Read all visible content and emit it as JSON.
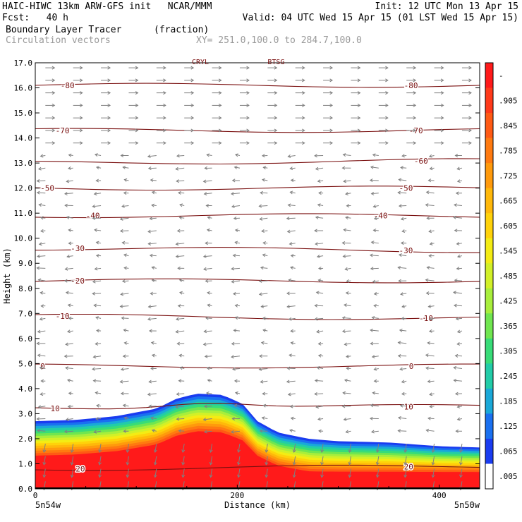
{
  "header": {
    "line1_left": "HAIC-HIWC 13km ARW-GFS init   NCAR/MMM",
    "line1_right": "Init: 12 UTC Mon 13 Apr 15",
    "line2_left": "Fcst:   40 h",
    "line2_right": "Valid: 04 UTC Wed 15 Apr 15 (01 LST Wed 15 Apr 15)",
    "field_name": "Boundary Layer Tracer",
    "field_units": "(fraction)",
    "vector_name": "Circulation vectors",
    "xsec_coords": "XY= 251.0,100.0 to 284.7,100.0"
  },
  "chart_data": {
    "type": "heatmap",
    "title": "Boundary Layer Tracer",
    "units": "fraction",
    "ylabel": "Height (km)",
    "xlabel": "Distance (km)",
    "ylim": [
      0,
      17
    ],
    "xlim": [
      0,
      440
    ],
    "y_ticks": [
      "0.0",
      "1.0",
      "2.0",
      "3.0",
      "4.0",
      "5.0",
      "6.0",
      "7.0",
      "8.0",
      "9.0",
      "10.0",
      "11.0",
      "12.0",
      "13.0",
      "14.0",
      "15.0",
      "16.0",
      "17.0"
    ],
    "x_ticks": [
      {
        "value": 0,
        "label": "0"
      },
      {
        "value": 200,
        "label": "200"
      },
      {
        "value": 400,
        "label": "400"
      }
    ],
    "endpoint_labels": [
      "5n54w",
      "5n50w"
    ],
    "top_markers": [
      "CRYL",
      "BTSG"
    ],
    "colorbar": {
      "labels": [
        "-",
        ".905",
        ".845",
        ".785",
        ".725",
        ".665",
        ".605",
        ".545",
        ".485",
        ".425",
        ".365",
        ".305",
        ".245",
        ".185",
        ".125",
        ".065",
        ".005"
      ],
      "colors": [
        "#ff1a1a",
        "#ff3a1a",
        "#ff5a14",
        "#ff7a10",
        "#ff9a0c",
        "#ffb80a",
        "#ffd20a",
        "#f4ec14",
        "#d2f028",
        "#a8ee3c",
        "#70e650",
        "#38dc78",
        "#22cca8",
        "#1aa8d8",
        "#1a70f0",
        "#1a3cf0",
        "#ffffff"
      ]
    },
    "tracer_top_km": [
      [
        0,
        2.7
      ],
      [
        40,
        2.75
      ],
      [
        80,
        2.9
      ],
      [
        120,
        3.2
      ],
      [
        140,
        3.6
      ],
      [
        160,
        3.8
      ],
      [
        185,
        3.75
      ],
      [
        205,
        3.4
      ],
      [
        220,
        2.7
      ],
      [
        240,
        2.25
      ],
      [
        270,
        2.0
      ],
      [
        300,
        1.9
      ],
      [
        350,
        1.85
      ],
      [
        400,
        1.7
      ],
      [
        440,
        1.65
      ]
    ],
    "isotherm_labels_c": [
      "-80",
      "-70",
      "-60",
      "-50",
      "-40",
      "-30",
      "-20",
      "-10",
      "0",
      "10",
      "20"
    ],
    "isotherms": [
      {
        "label": "-80",
        "left_km": 16.1,
        "right_km": 16.1,
        "label_left_x": 25,
        "label_right_x": 365
      },
      {
        "label": "-70",
        "left_km": 14.3,
        "right_km": 14.3,
        "label_left_x": 20,
        "label_right_x": 370
      },
      {
        "label": "-60",
        "left_km": 13.0,
        "right_km": 13.1,
        "label_left_x": null,
        "label_right_x": 375
      },
      {
        "label": "-50",
        "left_km": 12.0,
        "right_km": 12.0,
        "label_left_x": 5,
        "label_right_x": 360
      },
      {
        "label": "-40",
        "left_km": 10.9,
        "right_km": 10.9,
        "label_left_x": 50,
        "label_right_x": 335
      },
      {
        "label": "-30",
        "left_km": 9.6,
        "right_km": 9.5,
        "label_left_x": 35,
        "label_right_x": 360
      },
      {
        "label": "-20",
        "left_km": 8.3,
        "right_km": 8.3,
        "label_left_x": 35,
        "label_right_x": null
      },
      {
        "label": "-10",
        "left_km": 6.9,
        "right_km": 6.8,
        "label_left_x": 20,
        "label_right_x": 380
      },
      {
        "label": "0",
        "left_km": 4.9,
        "right_km": 4.9,
        "label_left_x": 5,
        "label_right_x": 370
      },
      {
        "label": "10",
        "left_km": 3.2,
        "right_km": 3.3,
        "label_left_x": 15,
        "label_right_x": 365
      },
      {
        "label": "20",
        "left_km": 0.8,
        "right_km": 0.9,
        "label_left_x": 40,
        "label_right_x": 365
      }
    ]
  }
}
